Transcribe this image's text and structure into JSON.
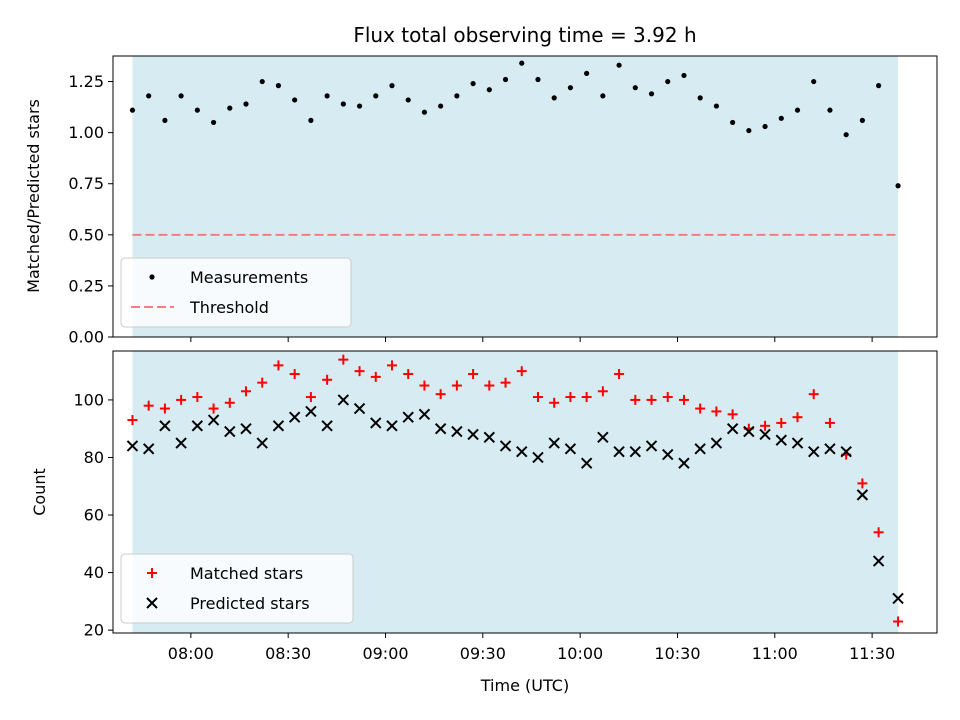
{
  "chart_data": [
    {
      "type": "scatter",
      "title": "Flux total observing time = 3.92 h",
      "ylabel": "Matched/Predicted stars",
      "xlabel": "",
      "ylim": [
        0,
        1.375
      ],
      "yticks": [
        0.0,
        0.25,
        0.5,
        0.75,
        1.0,
        1.25
      ],
      "yticklabels": [
        "0.00",
        "0.25",
        "0.50",
        "0.75",
        "1.00",
        "1.25"
      ],
      "xlim": [
        "07:36",
        "11:50"
      ],
      "xticks": [
        "08:00",
        "08:30",
        "09:00",
        "09:30",
        "10:00",
        "10:30",
        "11:00",
        "11:30"
      ],
      "xticklabels": [],
      "shaded_span": [
        "07:42",
        "11:38"
      ],
      "threshold": 0.5,
      "legend_location": "lower-left",
      "legend": [
        {
          "label": "Measurements",
          "marker": "dot",
          "color": "#000000"
        },
        {
          "label": "Threshold",
          "marker": "dashed-line",
          "color": "#f08080"
        }
      ],
      "series": [
        {
          "name": "Measurements",
          "x": [
            "07:42",
            "07:47",
            "07:52",
            "07:57",
            "08:02",
            "08:07",
            "08:12",
            "08:17",
            "08:22",
            "08:27",
            "08:32",
            "08:37",
            "08:42",
            "08:47",
            "08:52",
            "08:57",
            "09:02",
            "09:07",
            "09:12",
            "09:17",
            "09:22",
            "09:27",
            "09:32",
            "09:37",
            "09:42",
            "09:47",
            "09:52",
            "09:57",
            "10:02",
            "10:07",
            "10:12",
            "10:17",
            "10:22",
            "10:27",
            "10:32",
            "10:37",
            "10:42",
            "10:47",
            "10:52",
            "10:57",
            "11:02",
            "11:07",
            "11:12",
            "11:17",
            "11:22",
            "11:27",
            "11:32",
            "11:38"
          ],
          "y": [
            1.11,
            1.18,
            1.06,
            1.18,
            1.11,
            1.05,
            1.12,
            1.14,
            1.25,
            1.23,
            1.16,
            1.06,
            1.18,
            1.14,
            1.13,
            1.18,
            1.23,
            1.16,
            1.1,
            1.13,
            1.18,
            1.24,
            1.21,
            1.26,
            1.34,
            1.26,
            1.17,
            1.22,
            1.29,
            1.18,
            1.33,
            1.22,
            1.19,
            1.25,
            1.28,
            1.17,
            1.13,
            1.05,
            1.01,
            1.03,
            1.07,
            1.11,
            1.25,
            1.11,
            0.99,
            1.06,
            1.23,
            0.74
          ]
        }
      ]
    },
    {
      "type": "scatter",
      "title": "",
      "ylabel": "Count",
      "xlabel": "Time (UTC)",
      "ylim": [
        19,
        117
      ],
      "yticks": [
        20,
        40,
        60,
        80,
        100
      ],
      "yticklabels": [
        "20",
        "40",
        "60",
        "80",
        "100"
      ],
      "xlim": [
        "07:36",
        "11:50"
      ],
      "xticks": [
        "08:00",
        "08:30",
        "09:00",
        "09:30",
        "10:00",
        "10:30",
        "11:00",
        "11:30"
      ],
      "xticklabels": [
        "08:00",
        "08:30",
        "09:00",
        "09:30",
        "10:00",
        "10:30",
        "11:00",
        "11:30"
      ],
      "shaded_span": [
        "07:42",
        "11:38"
      ],
      "legend_location": "lower-left",
      "legend": [
        {
          "label": "Matched stars",
          "marker": "plus",
          "color": "#ff0000"
        },
        {
          "label": "Predicted stars",
          "marker": "x",
          "color": "#000000"
        }
      ],
      "series": [
        {
          "name": "Matched stars",
          "x": [
            "07:42",
            "07:47",
            "07:52",
            "07:57",
            "08:02",
            "08:07",
            "08:12",
            "08:17",
            "08:22",
            "08:27",
            "08:32",
            "08:37",
            "08:42",
            "08:47",
            "08:52",
            "08:57",
            "09:02",
            "09:07",
            "09:12",
            "09:17",
            "09:22",
            "09:27",
            "09:32",
            "09:37",
            "09:42",
            "09:47",
            "09:52",
            "09:57",
            "10:02",
            "10:07",
            "10:12",
            "10:17",
            "10:22",
            "10:27",
            "10:32",
            "10:37",
            "10:42",
            "10:47",
            "10:52",
            "10:57",
            "11:02",
            "11:07",
            "11:12",
            "11:17",
            "11:22",
            "11:27",
            "11:32",
            "11:38"
          ],
          "y": [
            93,
            98,
            97,
            100,
            101,
            97,
            99,
            103,
            106,
            112,
            109,
            101,
            107,
            114,
            110,
            108,
            112,
            109,
            105,
            102,
            105,
            109,
            105,
            106,
            110,
            101,
            99,
            101,
            101,
            103,
            109,
            100,
            100,
            101,
            100,
            97,
            96,
            95,
            90,
            91,
            92,
            94,
            102,
            92,
            81,
            71,
            54,
            23
          ]
        },
        {
          "name": "Predicted stars",
          "x": [
            "07:42",
            "07:47",
            "07:52",
            "07:57",
            "08:02",
            "08:07",
            "08:12",
            "08:17",
            "08:22",
            "08:27",
            "08:32",
            "08:37",
            "08:42",
            "08:47",
            "08:52",
            "08:57",
            "09:02",
            "09:07",
            "09:12",
            "09:17",
            "09:22",
            "09:27",
            "09:32",
            "09:37",
            "09:42",
            "09:47",
            "09:52",
            "09:57",
            "10:02",
            "10:07",
            "10:12",
            "10:17",
            "10:22",
            "10:27",
            "10:32",
            "10:37",
            "10:42",
            "10:47",
            "10:52",
            "10:57",
            "11:02",
            "11:07",
            "11:12",
            "11:17",
            "11:22",
            "11:27",
            "11:32",
            "11:38"
          ],
          "y": [
            84,
            83,
            91,
            85,
            91,
            93,
            89,
            90,
            85,
            91,
            94,
            96,
            91,
            100,
            97,
            92,
            91,
            94,
            95,
            90,
            89,
            88,
            87,
            84,
            82,
            80,
            85,
            83,
            78,
            87,
            82,
            82,
            84,
            81,
            78,
            83,
            85,
            90,
            89,
            88,
            86,
            85,
            82,
            83,
            82,
            67,
            44,
            31
          ]
        }
      ]
    }
  ]
}
